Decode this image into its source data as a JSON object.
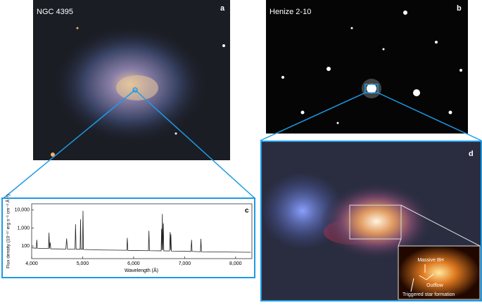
{
  "panels": {
    "a": {
      "title": "NGC 4395",
      "letter": "a"
    },
    "b": {
      "title": "Henize 2-10",
      "letter": "b"
    },
    "d": {
      "letter": "d",
      "annotations": [
        "Massive BH",
        "Outflow",
        "Triggered star formation"
      ]
    }
  },
  "chart_data": {
    "type": "line",
    "letter": "c",
    "xlabel": "Wavelength (Å)",
    "ylabel": "Flux density (10⁻¹⁷ erg s⁻¹ cm⁻² Å⁻¹)",
    "x": [
      4000,
      4090,
      4101,
      4112,
      4330,
      4340,
      4350,
      4363,
      4375,
      4670,
      4686,
      4700,
      4850,
      4861,
      4872,
      4950,
      4959,
      4968,
      4998,
      5007,
      5016,
      5400,
      5865,
      5876,
      5887,
      6290,
      6300,
      6310,
      6540,
      6548,
      6556,
      6563,
      6572,
      6583,
      6592,
      6705,
      6716,
      6725,
      6731,
      6740,
      7125,
      7136,
      7147,
      7310,
      7320,
      7330,
      8300
    ],
    "values": [
      80,
      75,
      220,
      75,
      72,
      550,
      72,
      160,
      70,
      68,
      260,
      68,
      68,
      1600,
      66,
      66,
      3000,
      66,
      66,
      9000,
      64,
      60,
      58,
      280,
      57,
      55,
      700,
      55,
      54,
      900,
      60,
      6000,
      60,
      1800,
      54,
      53,
      600,
      60,
      450,
      52,
      50,
      220,
      50,
      48,
      250,
      48,
      45
    ],
    "color": "#222222",
    "log_y": true,
    "xlim": [
      4000,
      8320
    ],
    "ylim": [
      20,
      22000
    ],
    "xticks": [
      {
        "value": 4000,
        "label": "4,000"
      },
      {
        "value": 5000,
        "label": "5,000"
      },
      {
        "value": 6000,
        "label": "6,000"
      },
      {
        "value": 7000,
        "label": "7,000"
      },
      {
        "value": 8000,
        "label": "8,000"
      }
    ],
    "yticks": [
      100,
      {
        "value": 1000,
        "label": "1,000"
      },
      {
        "value": 10000,
        "label": "10,000"
      }
    ]
  }
}
